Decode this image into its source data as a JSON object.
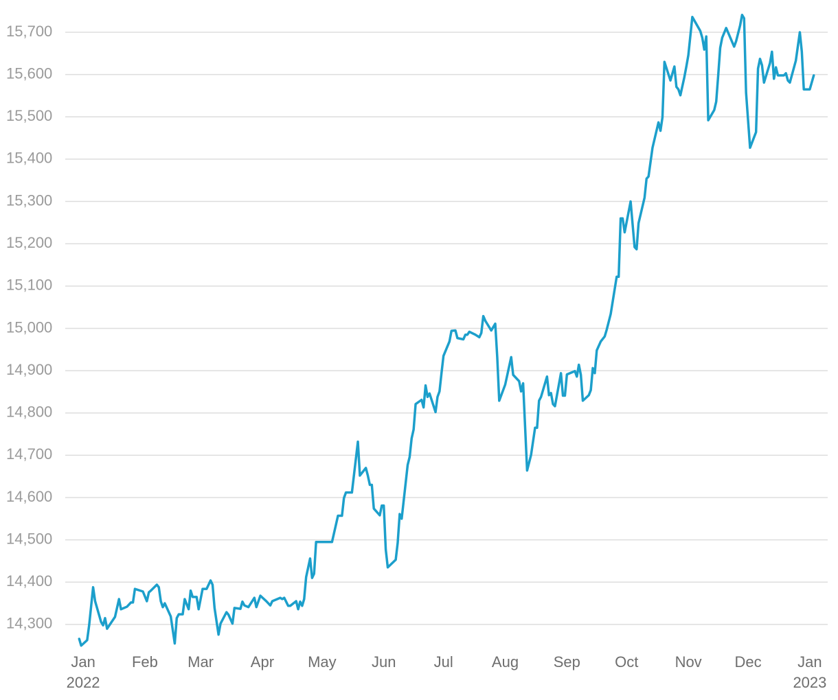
{
  "chart_data": {
    "type": "line",
    "color": "#1c9fcb",
    "grid": true,
    "x": [
      -2,
      -1,
      2,
      3,
      5,
      6,
      9,
      10,
      11,
      12,
      16,
      18,
      19,
      22,
      24,
      25,
      26,
      30,
      32,
      33,
      34,
      37,
      38,
      39,
      40,
      41,
      44,
      46,
      47,
      48,
      50,
      51,
      53,
      54,
      55,
      57,
      58,
      60,
      62,
      64,
      65,
      66,
      68,
      69,
      72,
      73,
      75,
      76,
      79,
      80,
      81,
      83,
      86,
      87,
      89,
      92,
      94,
      95,
      99,
      100,
      101,
      103,
      104,
      107,
      108,
      109,
      110,
      111,
      112,
      114,
      115,
      116,
      117,
      125,
      128,
      130,
      131,
      132,
      135,
      138,
      139,
      142,
      143,
      144,
      145,
      146,
      149,
      150,
      151,
      152,
      153,
      157,
      158,
      159,
      160,
      163,
      164,
      165,
      166,
      167,
      170,
      171,
      172,
      173,
      174,
      177,
      178,
      179,
      180,
      181,
      184,
      185,
      187,
      188,
      191,
      192,
      193,
      194,
      197,
      199,
      200,
      201,
      202,
      205,
      207,
      208,
      209,
      212,
      215,
      216,
      219,
      220,
      221,
      223,
      225,
      227,
      228,
      229,
      230,
      233,
      234,
      235,
      236,
      237,
      240,
      241,
      242,
      243,
      247,
      248,
      249,
      250,
      251,
      254,
      255,
      256,
      257,
      258,
      260,
      262,
      263,
      265,
      268,
      269,
      270,
      271,
      272,
      275,
      277,
      278,
      279,
      282,
      283,
      284,
      286,
      289,
      290,
      291,
      292,
      295,
      297,
      298,
      299,
      300,
      302,
      303,
      304,
      306,
      310,
      311,
      312,
      313,
      314,
      317,
      318,
      319,
      320,
      321,
      323,
      327,
      328,
      330,
      331,
      332,
      333,
      335,
      338,
      339,
      340,
      341,
      342,
      345,
      346,
      347,
      348,
      349,
      352,
      353,
      354,
      355,
      358,
      360,
      361,
      362,
      365,
      367
    ],
    "values": [
      14266,
      14250,
      14263,
      14298,
      14388,
      14355,
      14306,
      14298,
      14315,
      14290,
      14318,
      14360,
      14336,
      14342,
      14352,
      14352,
      14384,
      14378,
      14355,
      14376,
      14380,
      14394,
      14388,
      14355,
      14341,
      14350,
      14319,
      14255,
      14315,
      14324,
      14324,
      14360,
      14336,
      14380,
      14365,
      14365,
      14336,
      14384,
      14384,
      14404,
      14394,
      14339,
      14276,
      14302,
      14329,
      14323,
      14302,
      14339,
      14337,
      14354,
      14345,
      14341,
      14363,
      14341,
      14368,
      14355,
      14345,
      14355,
      14363,
      14360,
      14363,
      14344,
      14344,
      14355,
      14336,
      14354,
      14344,
      14360,
      14412,
      14456,
      14410,
      14420,
      14495,
      14495,
      14557,
      14557,
      14599,
      14612,
      14612,
      14732,
      14652,
      14670,
      14652,
      14630,
      14630,
      14574,
      14558,
      14581,
      14581,
      14477,
      14435,
      14453,
      14493,
      14561,
      14550,
      14677,
      14696,
      14740,
      14761,
      14821,
      14831,
      14813,
      14865,
      14838,
      14846,
      14802,
      14838,
      14851,
      14894,
      14935,
      14969,
      14994,
      14995,
      14977,
      14974,
      14985,
      14985,
      14992,
      14985,
      14979,
      14989,
      15029,
      15018,
      14995,
      15011,
      14932,
      14829,
      14867,
      14932,
      14890,
      14875,
      14851,
      14870,
      14664,
      14701,
      14765,
      14765,
      14829,
      14838,
      14886,
      14842,
      14847,
      14821,
      14816,
      14894,
      14841,
      14841,
      14891,
      14899,
      14886,
      14914,
      14890,
      14829,
      14842,
      14854,
      14906,
      14894,
      14948,
      14969,
      14981,
      14997,
      15034,
      15122,
      15122,
      15260,
      15260,
      15227,
      15300,
      15192,
      15187,
      15249,
      15309,
      15354,
      15359,
      15427,
      15487,
      15467,
      15499,
      15630,
      15586,
      15619,
      15571,
      15565,
      15551,
      15594,
      15619,
      15646,
      15736,
      15703,
      15687,
      15659,
      15690,
      15492,
      15516,
      15536,
      15598,
      15663,
      15687,
      15710,
      15666,
      15679,
      15716,
      15741,
      15733,
      15557,
      15427,
      15464,
      15614,
      15637,
      15622,
      15581,
      15627,
      15654,
      15590,
      15617,
      15598,
      15598,
      15603,
      15586,
      15581,
      15633,
      15700,
      15654,
      15565,
      15565,
      15598
    ],
    "xlim": [
      -9,
      374
    ],
    "ylim": [
      14235,
      15760
    ],
    "xticks": [
      {
        "value": 0,
        "label": "Jan"
      },
      {
        "value": 31,
        "label": "Feb"
      },
      {
        "value": 59,
        "label": "Mar"
      },
      {
        "value": 90,
        "label": "Apr"
      },
      {
        "value": 120,
        "label": "May"
      },
      {
        "value": 151,
        "label": "Jun"
      },
      {
        "value": 181,
        "label": "Jul"
      },
      {
        "value": 212,
        "label": "Aug"
      },
      {
        "value": 243,
        "label": "Sep"
      },
      {
        "value": 273,
        "label": "Oct"
      },
      {
        "value": 304,
        "label": "Nov"
      },
      {
        "value": 334,
        "label": "Dec"
      },
      {
        "value": 365,
        "label": "Jan"
      }
    ],
    "x_sublabels": [
      {
        "value": 0,
        "label": "2022"
      },
      {
        "value": 365,
        "label": "2023"
      }
    ],
    "yticks": [
      {
        "value": 14300,
        "label": "14,300"
      },
      {
        "value": 14400,
        "label": "14,400"
      },
      {
        "value": 14500,
        "label": "14,500"
      },
      {
        "value": 14600,
        "label": "14,600"
      },
      {
        "value": 14700,
        "label": "14,700"
      },
      {
        "value": 14800,
        "label": "14,800"
      },
      {
        "value": 14900,
        "label": "14,900"
      },
      {
        "value": 15000,
        "label": "15,000"
      },
      {
        "value": 15100,
        "label": "15,100"
      },
      {
        "value": 15200,
        "label": "15,200"
      },
      {
        "value": 15300,
        "label": "15,300"
      },
      {
        "value": 15400,
        "label": "15,400"
      },
      {
        "value": 15500,
        "label": "15,500"
      },
      {
        "value": 15600,
        "label": "15,600"
      },
      {
        "value": 15700,
        "label": "15,700"
      }
    ]
  }
}
